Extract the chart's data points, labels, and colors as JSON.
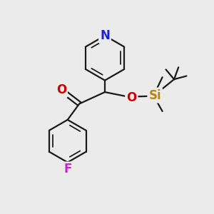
{
  "bg_color": "#ebebeb",
  "bond_color": "#1a1a1a",
  "bond_width": 1.6,
  "atom_colors": {
    "N": "#2020cc",
    "O": "#cc0000",
    "F": "#cc22cc",
    "Si": "#b8860b",
    "C": "#1a1a1a"
  },
  "font_size_atom": 11,
  "figsize": [
    3.0,
    3.0
  ],
  "dpi": 100
}
